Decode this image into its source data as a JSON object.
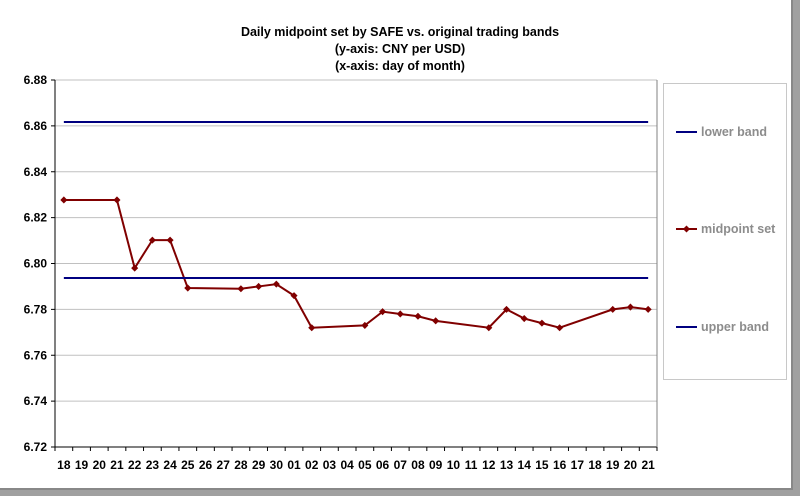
{
  "chart_data": {
    "type": "line",
    "title": [
      "Daily midpoint set by SAFE vs. original trading bands",
      "(y-axis: CNY per USD)",
      "(x-axis: day of month)"
    ],
    "xlabel": "day of month",
    "ylabel": "CNY per USD",
    "ylim": [
      6.72,
      6.88
    ],
    "yticks": [
      "6.72",
      "6.74",
      "6.76",
      "6.78",
      "6.80",
      "6.82",
      "6.84",
      "6.86",
      "6.88"
    ],
    "grid": true,
    "legend_position": "right",
    "categories": [
      "18",
      "19",
      "20",
      "21",
      "22",
      "23",
      "24",
      "25",
      "26",
      "27",
      "28",
      "29",
      "30",
      "01",
      "02",
      "03",
      "04",
      "05",
      "06",
      "07",
      "08",
      "09",
      "10",
      "11",
      "12",
      "13",
      "14",
      "15",
      "16",
      "17",
      "18",
      "19",
      "20",
      "21"
    ],
    "series": [
      {
        "name": "lower band",
        "color": "#000080",
        "marker": false,
        "values": [
          6.8617,
          6.8617,
          6.8617,
          6.8617,
          6.8617,
          6.8617,
          6.8617,
          6.8617,
          6.8617,
          6.8617,
          6.8617,
          6.8617,
          6.8617,
          6.8617,
          6.8617,
          6.8617,
          6.8617,
          6.8617,
          6.8617,
          6.8617,
          6.8617,
          6.8617,
          6.8617,
          6.8617,
          6.8617,
          6.8617,
          6.8617,
          6.8617,
          6.8617,
          6.8617,
          6.8617,
          6.8617,
          6.8617,
          6.8617
        ]
      },
      {
        "name": "midpoint set",
        "color": "#800000",
        "marker": true,
        "values": [
          6.8277,
          null,
          null,
          6.8277,
          6.798,
          6.8102,
          6.8102,
          6.7893,
          null,
          null,
          6.789,
          6.79,
          6.791,
          6.786,
          6.772,
          null,
          null,
          6.773,
          6.779,
          6.778,
          6.777,
          6.775,
          null,
          null,
          6.772,
          6.78,
          6.776,
          6.774,
          6.772,
          null,
          null,
          6.78,
          6.781,
          6.78
        ]
      },
      {
        "name": "upper band",
        "color": "#000080",
        "marker": false,
        "values": [
          6.7937,
          6.7937,
          6.7937,
          6.7937,
          6.7937,
          6.7937,
          6.7937,
          6.7937,
          6.7937,
          6.7937,
          6.7937,
          6.7937,
          6.7937,
          6.7937,
          6.7937,
          6.7937,
          6.7937,
          6.7937,
          6.7937,
          6.7937,
          6.7937,
          6.7937,
          6.7937,
          6.7937,
          6.7937,
          6.7937,
          6.7937,
          6.7937,
          6.7937,
          6.7937,
          6.7937,
          6.7937,
          6.7937,
          6.7937
        ]
      }
    ]
  }
}
